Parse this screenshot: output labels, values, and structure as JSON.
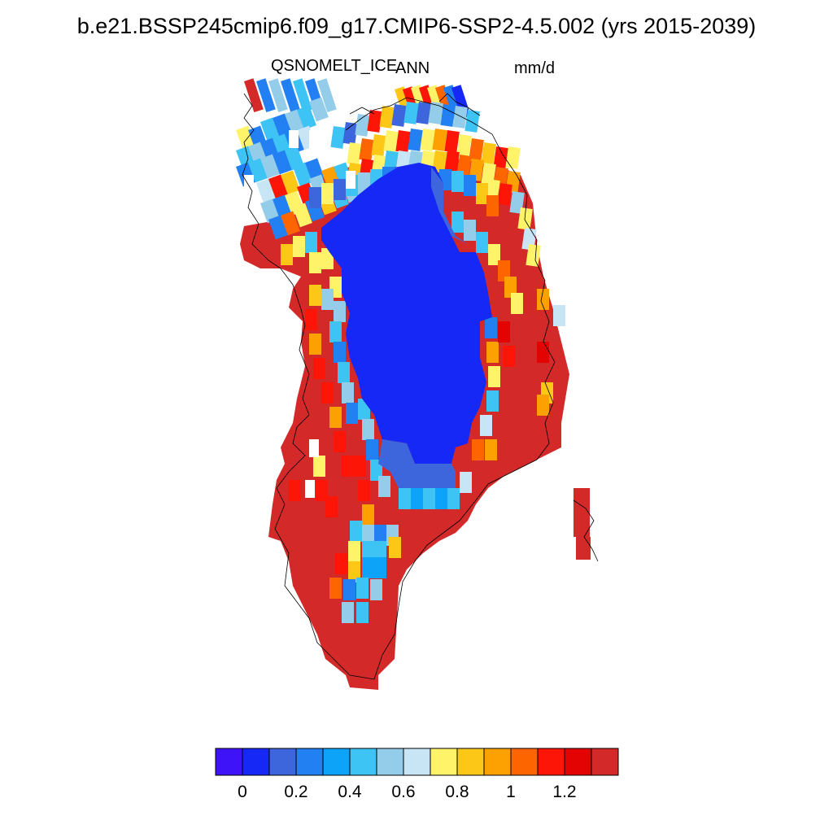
{
  "title": "b.e21.BSSP245cmip6.f09_g17.CMIP6-SSP2-4.5.002 (yrs 2015-2039)",
  "variable": "QSNOMELT_ICE",
  "season": "ANN",
  "units": "mm/d",
  "colorbar": {
    "colors": [
      "#3f13f7",
      "#1528f6",
      "#3d65dc",
      "#2380f3",
      "#0ca3f8",
      "#3dc3f4",
      "#94cdea",
      "#c8e5f6",
      "#fff36a",
      "#fdc717",
      "#fda102",
      "#fd6501",
      "#fd1607",
      "#e30303",
      "#d42929"
    ],
    "ticks": [
      "0",
      "0.2",
      "0.4",
      "0.6",
      "0.8",
      "1",
      "1.2"
    ],
    "tick_values": [
      0,
      0.2,
      0.4,
      0.6,
      0.8,
      1.0,
      1.2
    ],
    "levels": [
      -0.1,
      0.0,
      0.1,
      0.2,
      0.3,
      0.4,
      0.5,
      0.6,
      0.7,
      0.8,
      0.9,
      1.0,
      1.1,
      1.2,
      1.3,
      1.4
    ]
  },
  "map_colors": {
    "deep_blue": "#1528f6",
    "blue": "#3d65dc",
    "mid_blue": "#2380f3",
    "cyan": "#0ca3f8",
    "light_cyan": "#3dc3f4",
    "pale_blue": "#94cdea",
    "very_pale_blue": "#c8e5f6",
    "yellow": "#fff36a",
    "gold": "#fdc717",
    "orange": "#fda102",
    "dark_orange": "#fd6501",
    "red": "#fd1607",
    "dark_red": "#e30303",
    "brick": "#d42929"
  }
}
